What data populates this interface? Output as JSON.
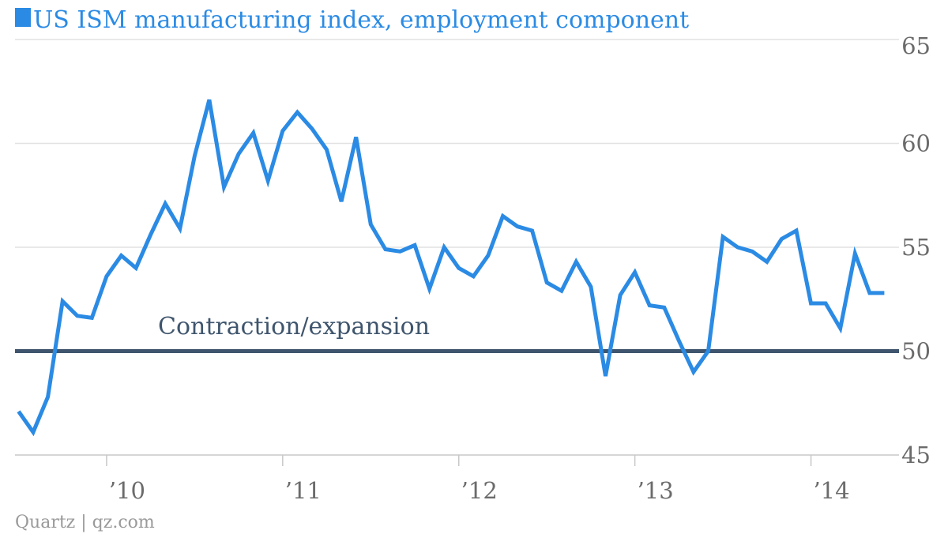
{
  "source": "Quartz | qz.com",
  "colors": {
    "series": "#2b8be4",
    "reference": "#3f556d",
    "grid": "#e2e2e2",
    "axis": "#c8c8c8",
    "tick_text": "#6b6b6b"
  },
  "chart_data": {
    "type": "line",
    "title": "US ISM manufacturing index, employment component",
    "legend": "top-left",
    "grid": true,
    "xlim": [
      2009.48,
      2014.5
    ],
    "ylim": [
      44.5,
      65
    ],
    "y_ticks": [
      45,
      50,
      55,
      60,
      65
    ],
    "x_ticks": [
      {
        "value": 2010.0,
        "label": "’10"
      },
      {
        "value": 2011.0,
        "label": "’11"
      },
      {
        "value": 2012.0,
        "label": "’12"
      },
      {
        "value": 2013.0,
        "label": "’13"
      },
      {
        "value": 2014.0,
        "label": "’14"
      }
    ],
    "reference_line": {
      "y": 50,
      "label": "Contraction/expansion"
    },
    "series": [
      {
        "name": "US ISM manufacturing index, employment component",
        "x": [
          "2009-07",
          "2009-08",
          "2009-09",
          "2009-10",
          "2009-11",
          "2009-12",
          "2010-01",
          "2010-02",
          "2010-03",
          "2010-04",
          "2010-05",
          "2010-06",
          "2010-07",
          "2010-08",
          "2010-09",
          "2010-10",
          "2010-11",
          "2010-12",
          "2011-01",
          "2011-02",
          "2011-03",
          "2011-04",
          "2011-05",
          "2011-06",
          "2011-07",
          "2011-08",
          "2011-09",
          "2011-10",
          "2011-11",
          "2011-12",
          "2012-01",
          "2012-02",
          "2012-03",
          "2012-04",
          "2012-05",
          "2012-06",
          "2012-07",
          "2012-08",
          "2012-09",
          "2012-10",
          "2012-11",
          "2012-12",
          "2013-01",
          "2013-02",
          "2013-03",
          "2013-04",
          "2013-05",
          "2013-06",
          "2013-07",
          "2013-08",
          "2013-09",
          "2013-10",
          "2013-11",
          "2013-12",
          "2014-01",
          "2014-02",
          "2014-03",
          "2014-04",
          "2014-05",
          "2014-06"
        ],
        "values": [
          47.1,
          46.1,
          47.8,
          52.4,
          51.7,
          51.6,
          53.6,
          54.6,
          54.0,
          55.6,
          57.1,
          55.9,
          59.4,
          62.1,
          57.9,
          59.5,
          60.5,
          58.2,
          60.6,
          61.5,
          60.7,
          59.7,
          57.2,
          60.3,
          56.1,
          54.9,
          54.8,
          55.1,
          53.0,
          55.0,
          54.0,
          53.6,
          54.6,
          56.5,
          56.0,
          55.8,
          53.3,
          52.9,
          54.3,
          53.1,
          48.8,
          52.7,
          53.8,
          52.2,
          52.1,
          50.5,
          49.0,
          50.0,
          55.5,
          55.0,
          54.8,
          54.3,
          55.4,
          55.8,
          52.3,
          52.3,
          51.1,
          54.7,
          52.8,
          52.8
        ]
      }
    ]
  }
}
